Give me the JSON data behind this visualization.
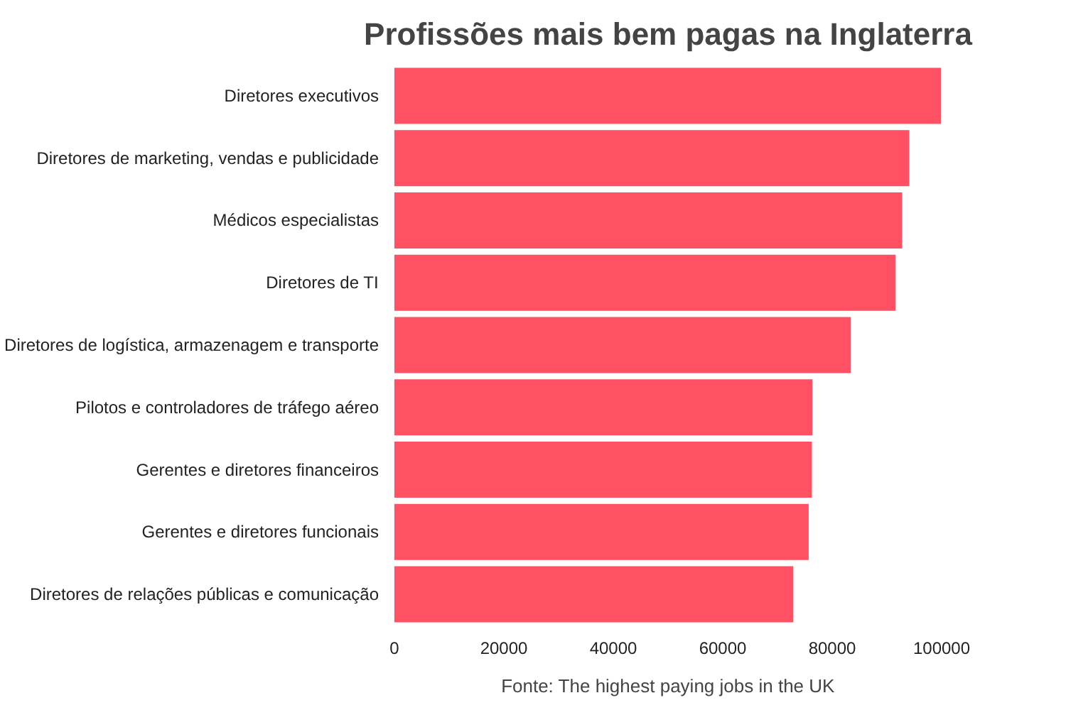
{
  "chart_data": {
    "type": "bar",
    "orientation": "horizontal",
    "title": "Profissões mais bem pagas na Inglaterra",
    "categories": [
      "Diretores executivos",
      "Diretores de marketing, vendas e publicidade",
      "Médicos especialistas",
      "Diretores de TI",
      "Diretores de logística, armazenagem e transporte",
      "Pilotos e controladores de tráfego aéreo",
      "Gerentes e diretores financeiros",
      "Gerentes e diretores funcionais",
      "Diretores de relações públicas e comunicação"
    ],
    "values": [
      99900,
      94100,
      92800,
      91600,
      83400,
      76400,
      76300,
      75700,
      72900
    ],
    "color": "#ff5064",
    "xlim": [
      0,
      100000
    ],
    "xticks": [
      0,
      20000,
      40000,
      60000,
      80000,
      100000
    ],
    "grid": false,
    "annotations": [
      "Fonte: The highest paying jobs in the UK"
    ]
  }
}
